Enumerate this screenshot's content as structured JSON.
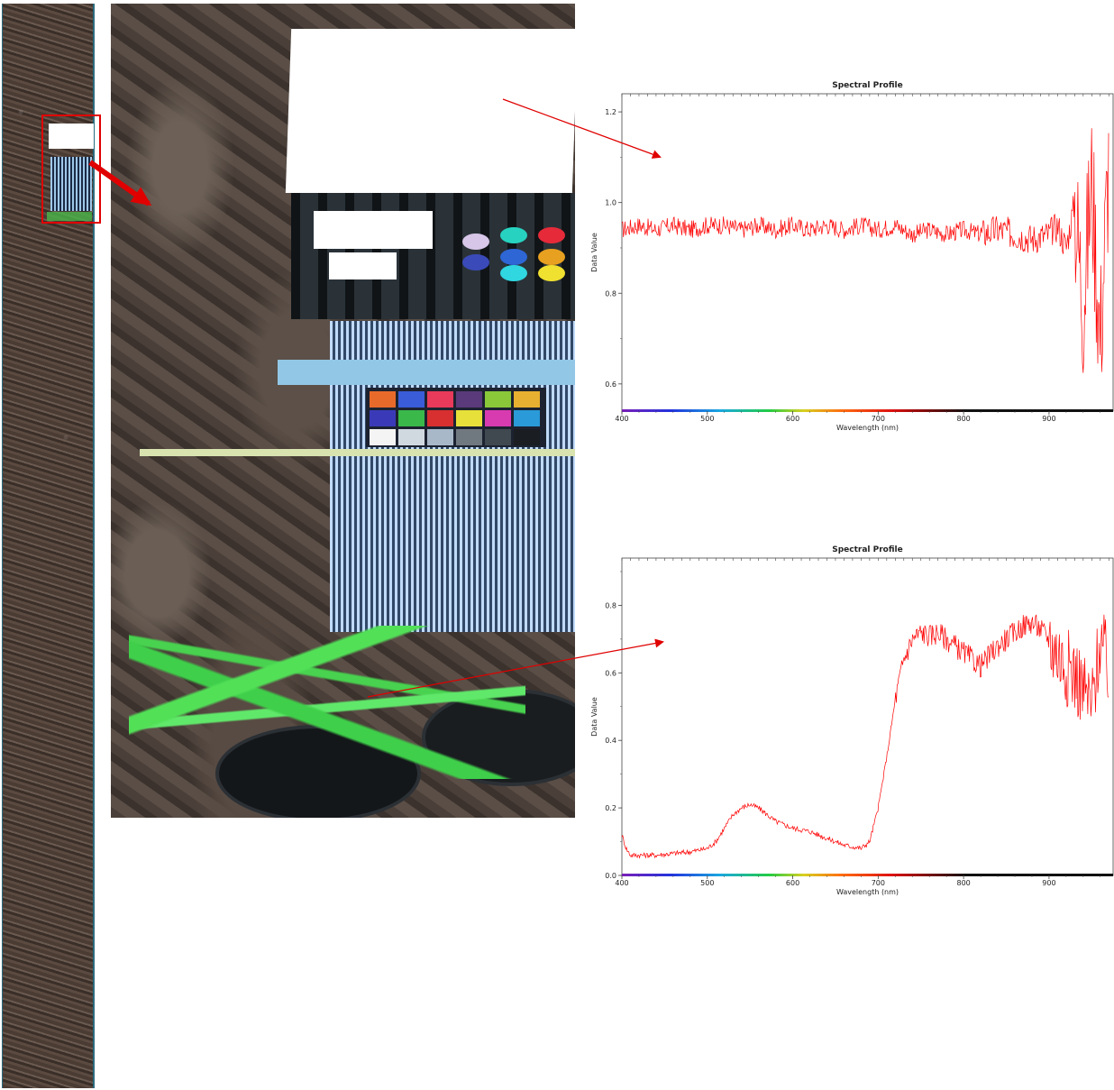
{
  "image": {
    "strip_label": "",
    "highlight_color": "#e00000"
  },
  "chart_data": [
    {
      "type": "line",
      "title": "Spectral Profile",
      "xlabel": "Wavelength (nm)",
      "ylabel": "Data Value",
      "xlim": [
        400,
        975
      ],
      "ylim": [
        0.54,
        1.24
      ],
      "x_ticks": [
        400,
        500,
        600,
        700,
        800,
        900
      ],
      "y_ticks": [
        0.6,
        0.8,
        1.0,
        1.2
      ],
      "y_tick_labels": [
        "0.6",
        "0.8",
        "1.0",
        "1.2"
      ],
      "x_tick_labels": [
        "400",
        "500",
        "600",
        "700",
        "800",
        "900"
      ],
      "line_color": "#ff0000",
      "series": [
        {
          "x": [
            400,
            420,
            440,
            460,
            480,
            500,
            520,
            540,
            560,
            580,
            600,
            620,
            640,
            660,
            680,
            700,
            720,
            740,
            760,
            780,
            800,
            820,
            840,
            860,
            880,
            900,
            910,
            920,
            930,
            940,
            950,
            960,
            970
          ],
          "values": [
            0.94,
            0.95,
            0.94,
            0.95,
            0.94,
            0.95,
            0.95,
            0.94,
            0.95,
            0.94,
            0.95,
            0.94,
            0.95,
            0.94,
            0.95,
            0.94,
            0.95,
            0.93,
            0.94,
            0.93,
            0.94,
            0.93,
            0.94,
            0.93,
            0.92,
            0.93,
            0.95,
            0.9,
            1.0,
            0.78,
            1.05,
            0.7,
            1.1
          ]
        }
      ]
    },
    {
      "type": "line",
      "title": "Spectral Profile",
      "xlabel": "Wavelength (nm)",
      "ylabel": "Data Value",
      "xlim": [
        400,
        975
      ],
      "ylim": [
        0.0,
        0.94
      ],
      "x_ticks": [
        400,
        500,
        600,
        700,
        800,
        900
      ],
      "y_ticks": [
        0.0,
        0.2,
        0.4,
        0.6,
        0.8
      ],
      "y_tick_labels": [
        "0.0",
        "0.2",
        "0.4",
        "0.6",
        "0.8"
      ],
      "x_tick_labels": [
        "400",
        "500",
        "600",
        "700",
        "800",
        "900"
      ],
      "line_color": "#ff0000",
      "series": [
        {
          "x": [
            400,
            405,
            410,
            420,
            440,
            460,
            480,
            500,
            510,
            520,
            530,
            540,
            550,
            560,
            570,
            580,
            590,
            600,
            620,
            640,
            660,
            680,
            690,
            700,
            710,
            720,
            730,
            740,
            750,
            760,
            770,
            780,
            790,
            800,
            810,
            820,
            830,
            840,
            850,
            860,
            870,
            880,
            890,
            900,
            910,
            920,
            930,
            940,
            950,
            960,
            970
          ],
          "values": [
            0.12,
            0.08,
            0.06,
            0.06,
            0.06,
            0.065,
            0.07,
            0.08,
            0.1,
            0.14,
            0.18,
            0.2,
            0.21,
            0.2,
            0.18,
            0.16,
            0.15,
            0.14,
            0.13,
            0.11,
            0.09,
            0.08,
            0.1,
            0.2,
            0.35,
            0.52,
            0.64,
            0.7,
            0.72,
            0.71,
            0.72,
            0.7,
            0.68,
            0.66,
            0.64,
            0.62,
            0.65,
            0.68,
            0.7,
            0.72,
            0.74,
            0.75,
            0.73,
            0.7,
            0.66,
            0.62,
            0.6,
            0.55,
            0.5,
            0.7,
            0.6
          ]
        }
      ]
    }
  ]
}
